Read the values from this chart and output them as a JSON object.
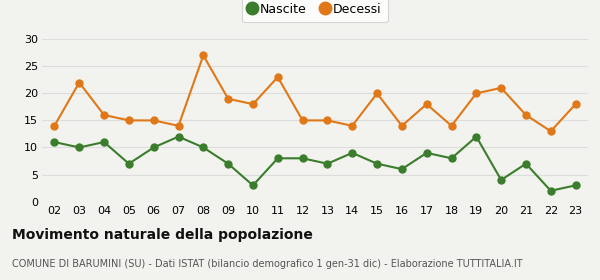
{
  "years": [
    "02",
    "03",
    "04",
    "05",
    "06",
    "07",
    "08",
    "09",
    "10",
    "11",
    "12",
    "13",
    "14",
    "15",
    "16",
    "17",
    "18",
    "19",
    "20",
    "21",
    "22",
    "23"
  ],
  "nascite": [
    11,
    10,
    11,
    7,
    10,
    12,
    10,
    7,
    3,
    8,
    8,
    7,
    9,
    7,
    6,
    9,
    8,
    12,
    4,
    7,
    2,
    3
  ],
  "decessi": [
    14,
    22,
    16,
    15,
    15,
    14,
    27,
    19,
    18,
    23,
    15,
    15,
    14,
    20,
    14,
    18,
    14,
    20,
    21,
    16,
    13,
    18
  ],
  "nascite_color": "#3a7d2c",
  "decessi_color": "#e07818",
  "bg_color": "#f2f2ee",
  "title": "Movimento naturale della popolazione",
  "subtitle": "COMUNE DI BARUMINI (SU) - Dati ISTAT (bilancio demografico 1 gen-31 dic) - Elaborazione TUTTITALIA.IT",
  "ylim": [
    0,
    30
  ],
  "yticks": [
    0,
    5,
    10,
    15,
    20,
    25,
    30
  ],
  "legend_nascite": "Nascite",
  "legend_decessi": "Decessi",
  "marker_size": 5,
  "line_width": 1.5,
  "grid_color": "#dddddd",
  "tick_fontsize": 8,
  "title_fontsize": 10,
  "subtitle_fontsize": 7
}
